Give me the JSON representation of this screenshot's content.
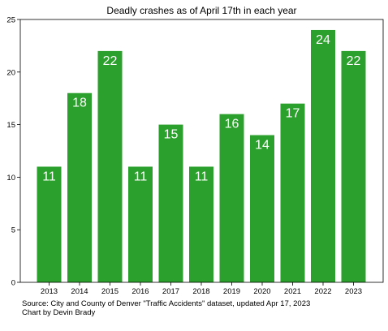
{
  "chart_data": {
    "type": "bar",
    "title": "Deadly crashes as of April 17th in each year",
    "xlabel": "",
    "ylabel": "",
    "categories": [
      "2013",
      "2014",
      "2015",
      "2016",
      "2017",
      "2018",
      "2019",
      "2020",
      "2021",
      "2022",
      "2023"
    ],
    "values": [
      11,
      18,
      22,
      11,
      15,
      11,
      16,
      14,
      17,
      24,
      22
    ],
    "ylim": [
      0,
      25
    ],
    "yticks": [
      0,
      5,
      10,
      15,
      20,
      25
    ],
    "grid": false,
    "legend": "none",
    "bar_color": "#2ca02c",
    "data_label_color": "#ffffff"
  },
  "footer": {
    "source": "Source: City and County of Denver \"Traffic Accidents\" dataset, updated Apr 17, 2023",
    "credit": "Chart by Devin Brady"
  }
}
